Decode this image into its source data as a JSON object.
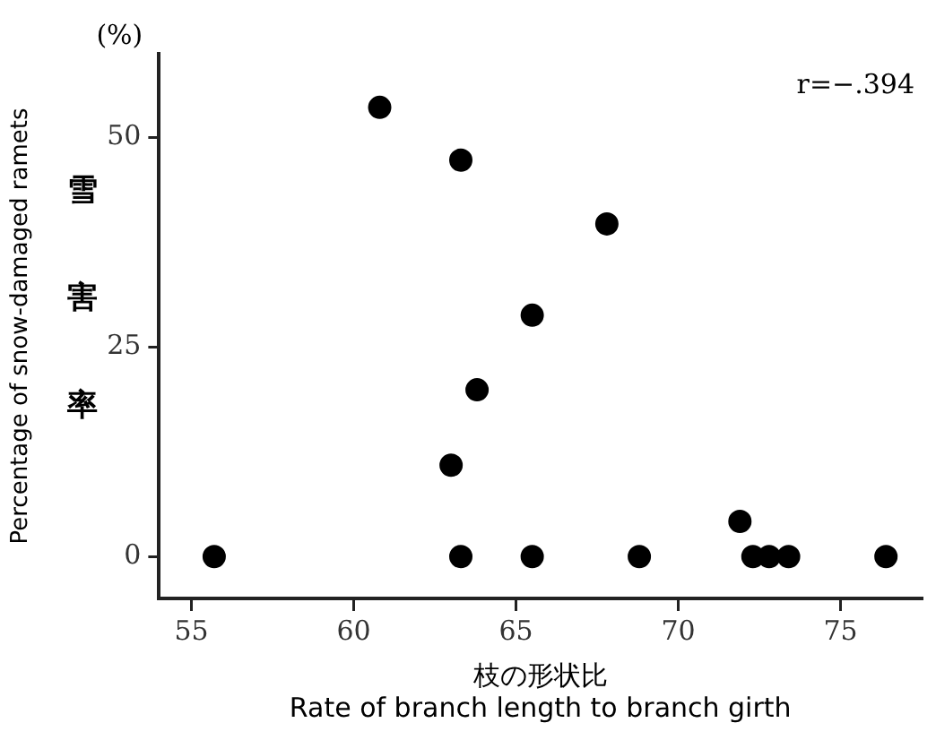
{
  "chart_data": {
    "type": "scatter",
    "xlabel": "枝の形状比\nRate of branch length to branch girth",
    "ylabel": "Percentage of snow-damaged ramets",
    "annotations": [
      "(%)",
      "雪害率",
      "r=−.394"
    ],
    "series": [
      {
        "color": "#000000",
        "x": [
          60.8,
          63.3,
          67.8,
          65.5,
          63.8,
          63.0,
          71.9,
          55.7,
          63.3,
          65.5,
          68.8,
          72.3,
          72.8,
          73.4,
          76.4
        ],
        "values": [
          53.6,
          47.3,
          39.7,
          28.8,
          19.9,
          10.9,
          4.2,
          0,
          0,
          0,
          0,
          0,
          0,
          0,
          0
        ]
      }
    ],
    "xlim": [
      54,
      77.5
    ],
    "xticks": [
      55,
      60,
      65,
      70,
      75
    ],
    "ylim": [
      -5,
      60
    ],
    "yticks": [
      0,
      25,
      50
    ],
    "grid": false,
    "legend": false,
    "marker": "circle"
  }
}
